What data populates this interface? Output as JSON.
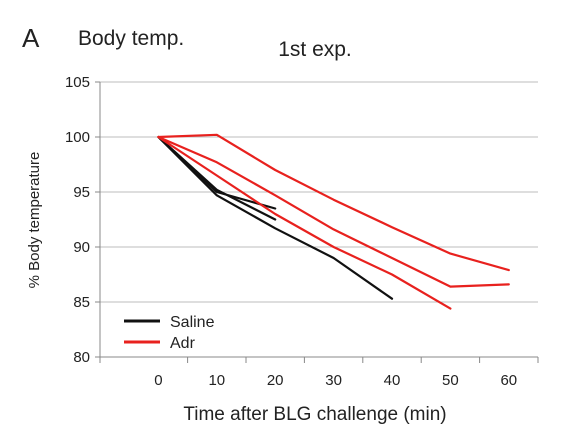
{
  "panel_label": "A",
  "chart_data": {
    "type": "line",
    "title": "1st exp.",
    "subtitle": "Body temp.",
    "xlabel": "Time after BLG challenge (min)",
    "ylabel": "% Body temperature",
    "xlim": [
      -10,
      65
    ],
    "ylim": [
      80,
      105
    ],
    "x_ticks": [
      0,
      10,
      20,
      30,
      40,
      50,
      60
    ],
    "y_ticks": [
      80,
      85,
      90,
      95,
      100,
      105
    ],
    "grid": "horizontal",
    "legend_position": "bottom-left",
    "legend": [
      {
        "label": "Saline",
        "color": "#111111"
      },
      {
        "label": "Adr",
        "color": "#e8211e"
      }
    ],
    "series": [
      {
        "group": "Saline",
        "color": "#111111",
        "points": [
          [
            0,
            100
          ],
          [
            10,
            94.7
          ],
          [
            20,
            91.7
          ],
          [
            30,
            89.0
          ],
          [
            40,
            85.3
          ]
        ]
      },
      {
        "group": "Saline",
        "color": "#111111",
        "points": [
          [
            0,
            100
          ],
          [
            10,
            95.2
          ],
          [
            20,
            92.5
          ]
        ]
      },
      {
        "group": "Saline",
        "color": "#111111",
        "points": [
          [
            0,
            100
          ],
          [
            10,
            95.0
          ],
          [
            20,
            93.5
          ]
        ]
      },
      {
        "group": "Adr",
        "color": "#e8211e",
        "points": [
          [
            0,
            100
          ],
          [
            10,
            100.2
          ],
          [
            20,
            97.0
          ],
          [
            30,
            94.3
          ],
          [
            40,
            91.8
          ],
          [
            50,
            89.4
          ],
          [
            60,
            87.9
          ]
        ]
      },
      {
        "group": "Adr",
        "color": "#e8211e",
        "points": [
          [
            0,
            100
          ],
          [
            10,
            97.7
          ],
          [
            20,
            94.7
          ],
          [
            30,
            91.6
          ],
          [
            40,
            89.0
          ],
          [
            50,
            86.4
          ],
          [
            60,
            86.6
          ]
        ]
      },
      {
        "group": "Adr",
        "color": "#e8211e",
        "points": [
          [
            0,
            100
          ],
          [
            10,
            96.5
          ],
          [
            20,
            93.0
          ],
          [
            30,
            90.0
          ],
          [
            40,
            87.5
          ],
          [
            50,
            84.4
          ]
        ]
      }
    ]
  }
}
